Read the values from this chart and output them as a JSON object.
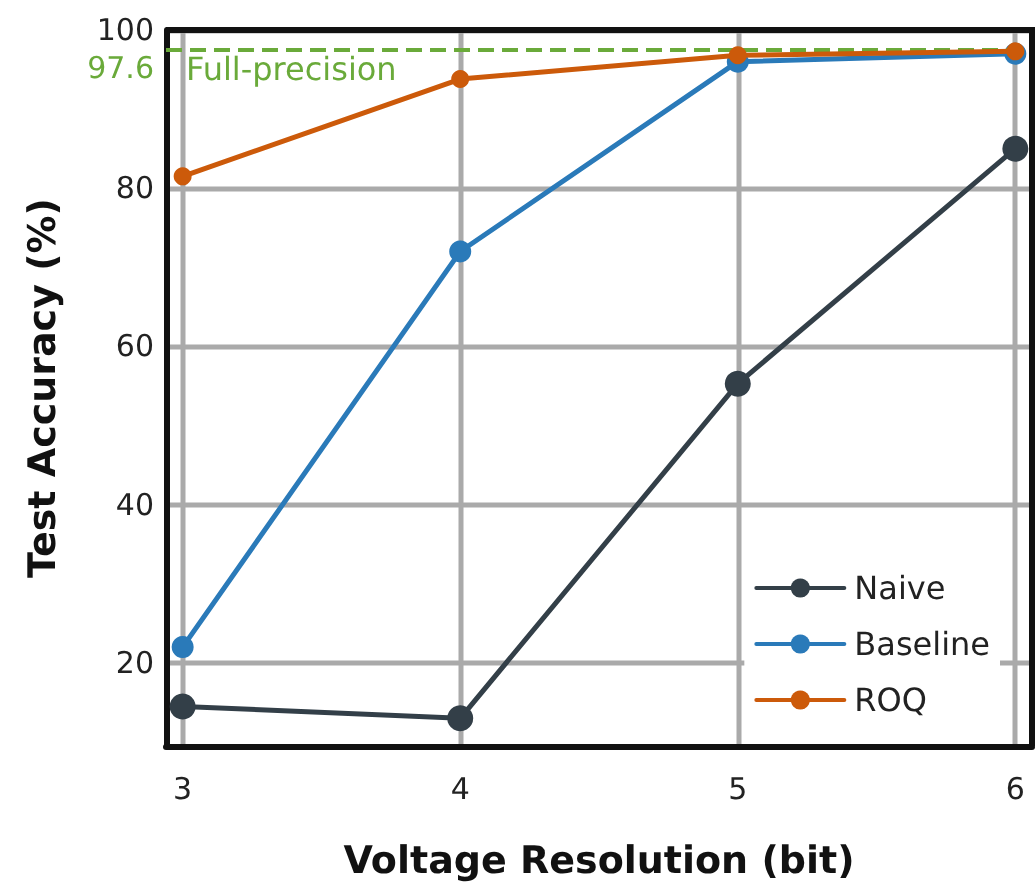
{
  "chart_data": {
    "type": "line",
    "xlabel": "Voltage Resolution (bit)",
    "ylabel": "Test Accuracy (%)",
    "x": [
      3,
      4,
      5,
      6
    ],
    "series": [
      {
        "name": "Naive",
        "color": "#333f48",
        "values": [
          14.5,
          13,
          55.3,
          85
        ]
      },
      {
        "name": "Baseline",
        "color": "#2a7ab9",
        "values": [
          22,
          72,
          96,
          97
        ]
      },
      {
        "name": "ROQ",
        "color": "#cc5a0a",
        "values": [
          81.5,
          93.8,
          96.8,
          97.3
        ]
      }
    ],
    "xlim": [
      2.94,
      6.06
    ],
    "xticks": [
      3,
      4,
      5,
      6
    ],
    "ylim": [
      9.5,
      100
    ],
    "yticks": [
      20,
      40,
      60,
      80,
      100
    ],
    "ref_lines": [
      {
        "axis": "y",
        "value": 97.6,
        "label": "Full-precision",
        "color": "#6aaa3a",
        "line_style": "dashed"
      }
    ],
    "annotations": [
      "97.6"
    ],
    "grid": true,
    "legend": "bottom right",
    "marker": "circle",
    "line_style": "solid"
  }
}
